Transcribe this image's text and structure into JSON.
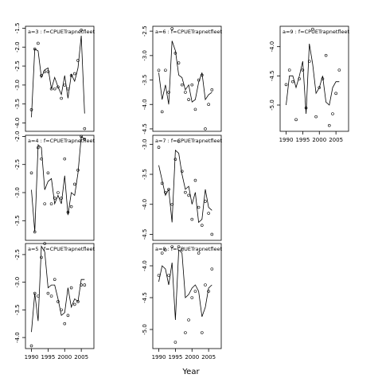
{
  "figure": {
    "xlabel": "Year"
  },
  "chart_data": [
    {
      "type": "line",
      "strip_label": "a=3 : f=CPUETrapnetfleet",
      "xlim": [
        1988.2,
        2008.8
      ],
      "ylim": [
        -4.22,
        -1.45
      ],
      "x_ticks": [
        1990,
        1995,
        2000,
        2005
      ],
      "y_ticks": [
        -1.5,
        -2.0,
        -2.5,
        -3.0,
        -3.5,
        -4.0
      ],
      "y_tick_labels": [
        "-1.5",
        "-2.0",
        "-2.5",
        "-3.0",
        "-3.5",
        "-4.0"
      ],
      "show_x_ticks": false,
      "series": [
        {
          "x": [
            1990,
            1991,
            1992,
            1993,
            1994,
            1995,
            1996,
            1997,
            1998,
            1999,
            2000,
            2001,
            2002,
            2003,
            2004,
            2005,
            2006
          ],
          "values": [
            -3.85,
            -2.05,
            -2.1,
            -2.8,
            -2.6,
            -2.55,
            -3.1,
            -2.8,
            -3.05,
            -3.25,
            -2.75,
            -3.35,
            -2.72,
            -2.9,
            -2.55,
            -1.7,
            -3.75
          ]
        },
        {
          "marker": "circle",
          "x": [
            1990,
            1991,
            1992,
            1993,
            1994,
            1995,
            1996,
            1997,
            1998,
            1999,
            2000,
            2001,
            2002,
            2003,
            2004,
            2005,
            2006
          ],
          "values": [
            -3.65,
            -2.05,
            -1.9,
            -2.75,
            -2.65,
            -2.65,
            -3.1,
            -3.1,
            -3.05,
            -3.35,
            -3.0,
            -3.1,
            -2.75,
            -2.7,
            -2.35,
            -1.55,
            -4.15
          ]
        }
      ]
    },
    {
      "type": "line",
      "strip_label": "a=4 : f=CPUETrapnetfleet",
      "xlim": [
        1988.2,
        2008.8
      ],
      "ylim": [
        -3.85,
        -1.98
      ],
      "x_ticks": [
        1990,
        1995,
        2000,
        2005
      ],
      "y_ticks": [
        -2.0,
        -2.5,
        -3.0,
        -3.5
      ],
      "y_tick_labels": [
        "-2.0",
        "-2.5",
        "-3.0",
        "-3.5"
      ],
      "show_x_ticks": false,
      "series": [
        {
          "x": [
            1990,
            1991,
            1992,
            1993,
            1994,
            1995,
            1996,
            1997,
            1998,
            1999,
            2000,
            2001,
            2002,
            2003,
            2004,
            2005,
            2006
          ],
          "values": [
            -2.95,
            -3.7,
            -2.15,
            -2.2,
            -2.95,
            -2.8,
            -2.75,
            -3.2,
            -3.05,
            -3.2,
            -2.7,
            -3.4,
            -3.0,
            -3.05,
            -2.65,
            -2.0,
            -2.05
          ]
        },
        {
          "marker": "circle",
          "x": [
            1990,
            1991,
            1992,
            1993,
            1994,
            1995,
            1996,
            1997,
            1998,
            1999,
            2000,
            2001,
            2002,
            2003,
            2004,
            2005,
            2006
          ],
          "values": [
            -2.65,
            -3.7,
            -2.2,
            -2.4,
            -3.2,
            -2.65,
            -3.2,
            -3.1,
            -3.0,
            -3.1,
            -2.4,
            -3.35,
            -3.25,
            -2.85,
            -2.6,
            -2.0,
            -2.05
          ]
        }
      ]
    },
    {
      "type": "line",
      "strip_label": "a=5 : f=CPUETrapnetfleet",
      "xlim": [
        1988.2,
        2008.8
      ],
      "ylim": [
        -4.2,
        -2.3
      ],
      "x_ticks": [
        1990,
        1995,
        2000,
        2005
      ],
      "x_tick_labels": [
        "1990",
        "1995",
        "2000",
        "2005"
      ],
      "y_ticks": [
        -2.5,
        -3.0,
        -3.5,
        -4.0
      ],
      "y_tick_labels": [
        "-2.5",
        "-3.0",
        "-3.5",
        "-4.0"
      ],
      "show_x_ticks": true,
      "series": [
        {
          "x": [
            1990,
            1991,
            1992,
            1993,
            1994,
            1995,
            1996,
            1997,
            1998,
            1999,
            2000,
            2001,
            2002,
            2003,
            2004,
            2005,
            2006
          ],
          "values": [
            -3.9,
            -3.2,
            -3.7,
            -2.35,
            -2.45,
            -3.1,
            -3.05,
            -3.05,
            -3.3,
            -3.6,
            -3.55,
            -3.1,
            -3.45,
            -3.3,
            -3.35,
            -2.95,
            -2.95
          ]
        },
        {
          "marker": "circle",
          "x": [
            1990,
            1991,
            1992,
            1993,
            1994,
            1995,
            1996,
            1997,
            1998,
            1999,
            2000,
            2001,
            2002,
            2003,
            2004,
            2005,
            2006
          ],
          "values": [
            -4.15,
            -3.2,
            -3.25,
            -2.55,
            -2.3,
            -3.2,
            -3.25,
            -2.95,
            -3.35,
            -3.5,
            -3.75,
            -3.6,
            -3.1,
            -3.4,
            -3.35,
            -3.05,
            -3.05
          ]
        }
      ]
    },
    {
      "type": "line",
      "strip_label": "a=6 : f=CPUETrapnetfleet",
      "xlim": [
        1988.2,
        2008.8
      ],
      "ylim": [
        -4.55,
        -2.4
      ],
      "x_ticks": [
        1990,
        1995,
        2000,
        2005
      ],
      "y_ticks": [
        -2.5,
        -3.0,
        -3.5,
        -4.0,
        -4.5
      ],
      "y_tick_labels": [
        "-2.5",
        "-3.0",
        "-3.5",
        "-4.0",
        "-4.5"
      ],
      "show_x_ticks": false,
      "series": [
        {
          "x": [
            1990,
            1991,
            1992,
            1993,
            1994,
            1995,
            1996,
            1997,
            1998,
            1999,
            2000,
            2001,
            2002,
            2003,
            2004,
            2005,
            2006
          ],
          "values": [
            -3.35,
            -3.9,
            -3.6,
            -4.0,
            -2.7,
            -2.9,
            -3.4,
            -3.45,
            -3.7,
            -3.6,
            -3.95,
            -3.9,
            -3.55,
            -3.35,
            -3.9,
            -3.8,
            -3.75
          ]
        },
        {
          "marker": "circle",
          "x": [
            1990,
            1991,
            1992,
            1993,
            1994,
            1995,
            1996,
            1997,
            1998,
            1999,
            2000,
            2001,
            2002,
            2003,
            2004,
            2005,
            2006
          ],
          "values": [
            -3.3,
            -4.15,
            -3.3,
            -3.75,
            -2.45,
            -2.95,
            -3.15,
            -3.6,
            -3.75,
            -3.9,
            -3.6,
            -4.1,
            -3.5,
            -3.4,
            -4.5,
            -4.0,
            -3.7
          ]
        }
      ]
    },
    {
      "type": "line",
      "strip_label": "a=7 : f=CPUETrapnetfleet",
      "xlim": [
        1988.2,
        2008.8
      ],
      "ylim": [
        -4.6,
        -2.85
      ],
      "x_ticks": [
        1990,
        1995,
        2000,
        2005
      ],
      "y_ticks": [
        -3.0,
        -3.5,
        -4.0,
        -4.5
      ],
      "y_tick_labels": [
        "-3.0",
        "-3.5",
        "-4.0",
        "-4.5"
      ],
      "show_x_ticks": false,
      "series": [
        {
          "x": [
            1990,
            1991,
            1992,
            1993,
            1994,
            1995,
            1996,
            1997,
            1998,
            1999,
            2000,
            2001,
            2002,
            2003,
            2004,
            2005,
            2006
          ],
          "values": [
            -3.35,
            -3.6,
            -3.85,
            -3.75,
            -4.3,
            -3.1,
            -3.15,
            -3.5,
            -3.75,
            -3.7,
            -4.0,
            -3.8,
            -4.3,
            -4.25,
            -3.75,
            -4.05,
            -4.1
          ]
        },
        {
          "marker": "circle",
          "x": [
            1990,
            1991,
            1992,
            1993,
            1994,
            1995,
            1996,
            1997,
            1998,
            1999,
            2000,
            2001,
            2002,
            2003,
            2004,
            2005,
            2006
          ],
          "values": [
            -3.05,
            -3.65,
            -3.8,
            -3.75,
            -4.0,
            -3.25,
            -2.95,
            -3.45,
            -3.8,
            -3.85,
            -4.25,
            -3.6,
            -4.05,
            -4.35,
            -3.95,
            -4.15,
            -4.5
          ]
        }
      ]
    },
    {
      "type": "line",
      "strip_label": "a=8 : f=CPUETrapnetfleet",
      "xlim": [
        1988.2,
        2008.8
      ],
      "ylim": [
        -5.3,
        -3.65
      ],
      "x_ticks": [
        1990,
        1995,
        2000,
        2005
      ],
      "x_tick_labels": [
        "1990",
        "1995",
        "2000",
        "2005"
      ],
      "y_ticks": [
        -4.0,
        -4.5,
        -5.0
      ],
      "y_tick_labels": [
        "-4.0",
        "-4.5",
        "-5.0"
      ],
      "show_x_ticks": true,
      "series": [
        {
          "x": [
            1990,
            1991,
            1992,
            1993,
            1994,
            1995,
            1996,
            1997,
            1998,
            1999,
            2000,
            2001,
            2002,
            2003,
            2004,
            2005,
            2006
          ],
          "values": [
            -4.25,
            -4.0,
            -4.05,
            -4.3,
            -3.95,
            -4.85,
            -3.75,
            -3.8,
            -4.5,
            -4.45,
            -4.35,
            -4.3,
            -4.4,
            -4.8,
            -4.65,
            -4.35,
            -4.3
          ]
        },
        {
          "marker": "circle",
          "x": [
            1990,
            1991,
            1992,
            1993,
            1994,
            1995,
            1996,
            1997,
            1998,
            1999,
            2000,
            2001,
            2002,
            2003,
            2004,
            2005,
            2006
          ],
          "values": [
            -4.15,
            -3.8,
            -3.75,
            -4.15,
            -3.7,
            -5.2,
            -3.7,
            -3.75,
            -5.05,
            -4.85,
            -4.5,
            -4.4,
            -3.8,
            -5.05,
            -4.3,
            -4.4,
            -4.05
          ]
        }
      ]
    },
    {
      "type": "line",
      "strip_label": "a=9 : f=CPUETrapnetfleet",
      "xlim": [
        1988.2,
        2008.8
      ],
      "ylim": [
        -5.45,
        -3.65
      ],
      "x_ticks": [
        1990,
        1995,
        2000,
        2005
      ],
      "x_tick_labels": [
        "1990",
        "1995",
        "2000",
        "2005"
      ],
      "y_ticks": [
        -4.0,
        -4.5,
        -5.0
      ],
      "y_tick_labels": [
        "-4.0",
        "-4.5",
        "-5.0"
      ],
      "show_x_ticks": true,
      "series": [
        {
          "x": [
            1990,
            1991,
            1992,
            1993,
            1994,
            1995,
            1996,
            1997,
            1998,
            1999,
            2000,
            2001,
            2002,
            2003,
            2004,
            2005,
            2006
          ],
          "values": [
            -5.0,
            -4.5,
            -4.5,
            -4.7,
            -4.5,
            -4.25,
            -5.15,
            -3.95,
            -4.3,
            -4.8,
            -4.7,
            -4.5,
            -4.95,
            -5.0,
            -4.7,
            -4.6,
            -4.6
          ]
        },
        {
          "marker": "circle",
          "x": [
            1990,
            1991,
            1992,
            1993,
            1994,
            1995,
            1996,
            1997,
            1998,
            1999,
            2000,
            2001,
            2002,
            2003,
            2004,
            2005,
            2006
          ],
          "values": [
            -4.65,
            -4.4,
            -4.6,
            -5.25,
            -4.55,
            -4.4,
            -5.05,
            -4.25,
            -3.7,
            -5.2,
            -4.7,
            -4.55,
            -4.15,
            -5.35,
            -5.15,
            -4.8,
            -4.4
          ]
        }
      ]
    }
  ]
}
